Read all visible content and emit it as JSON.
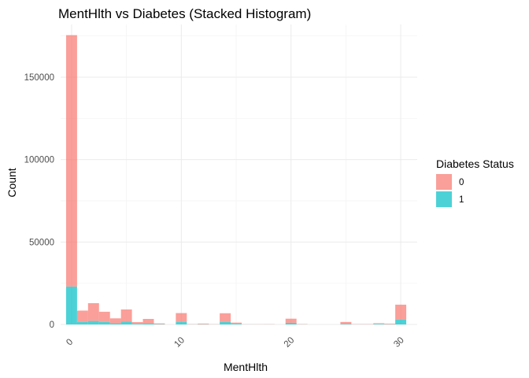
{
  "chart_data": {
    "type": "bar",
    "subtype": "stacked-histogram",
    "title": "MentHlth vs Diabetes (Stacked Histogram)",
    "xlabel": "MentHlth",
    "ylabel": "Count",
    "xlim": [
      -1,
      31.5
    ],
    "ylim": [
      0,
      182000
    ],
    "xticks": [
      0,
      10,
      20,
      30
    ],
    "yticks": [
      0,
      50000,
      100000,
      150000
    ],
    "x_tick_rotation": 45,
    "grid": true,
    "legend": {
      "title": "Diabetes Status",
      "position": "right",
      "entries": [
        {
          "label": "0",
          "color": "#F8766D"
        },
        {
          "label": "1",
          "color": "#00BFC4"
        }
      ]
    },
    "x": [
      0,
      1,
      2,
      3,
      4,
      5,
      6,
      7,
      8,
      9,
      10,
      11,
      12,
      13,
      14,
      15,
      16,
      17,
      18,
      19,
      20,
      21,
      22,
      23,
      24,
      25,
      26,
      27,
      28,
      29,
      30
    ],
    "series": [
      {
        "name": "1",
        "color": "#00BFC4",
        "values": [
          23000,
          1600,
          2100,
          1500,
          800,
          1700,
          400,
          650,
          200,
          0,
          1600,
          80,
          150,
          50,
          1500,
          400,
          40,
          30,
          40,
          0,
          1000,
          80,
          0,
          0,
          0,
          300,
          60,
          70,
          350,
          150,
          3000
        ]
      },
      {
        "name": "0",
        "color": "#F8766D",
        "values": [
          152500,
          6800,
          10800,
          6200,
          2900,
          7400,
          1000,
          2700,
          400,
          0,
          5300,
          120,
          350,
          100,
          5300,
          700,
          70,
          70,
          100,
          0,
          2500,
          150,
          0,
          0,
          0,
          1200,
          140,
          150,
          350,
          300,
          9000
        ]
      }
    ]
  }
}
